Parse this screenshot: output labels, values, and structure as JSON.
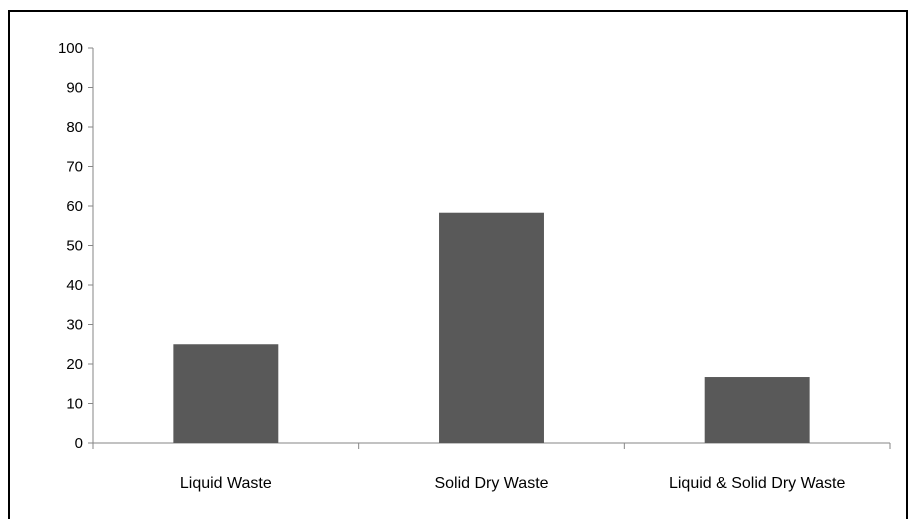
{
  "chart_data": {
    "type": "bar",
    "categories": [
      "Liquid Waste",
      "Solid Dry Waste",
      "Liquid & Solid Dry Waste"
    ],
    "values": [
      25,
      58.3,
      16.7
    ],
    "ylim": [
      0,
      100
    ],
    "yticks": [
      0,
      10,
      20,
      30,
      40,
      50,
      60,
      70,
      80,
      90,
      100
    ],
    "title": "",
    "xlabel": "",
    "ylabel": "",
    "grid": false,
    "legend": "none",
    "colors": {
      "bar": "#595959",
      "axis": "#868686",
      "frame": "#000000"
    }
  }
}
